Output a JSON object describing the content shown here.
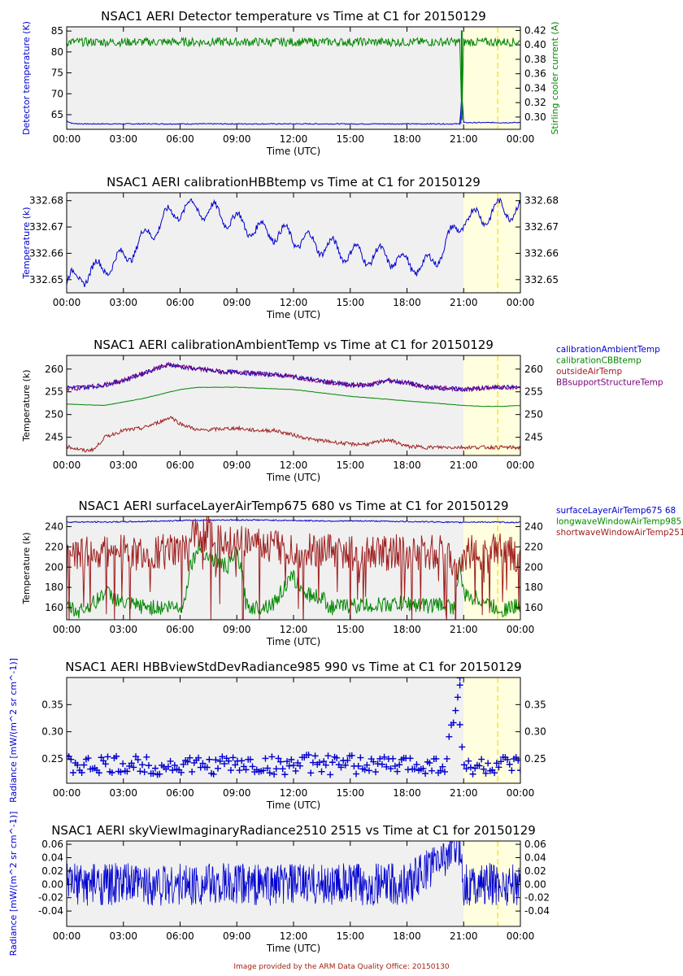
{
  "footer": "Image provided by the ARM Data Quality Office: 20150130",
  "colors": {
    "plot_bg": "#f0f0f0",
    "highlight": "#ffffe0",
    "highlight_line": "#ffd700",
    "blue": "#0000d0",
    "green": "#008800",
    "brown": "#a02020",
    "purple": "#7a007a"
  },
  "chart_data": [
    {
      "type": "line",
      "title": "NSAC1 AERI Detector temperature vs Time at C1 for 20150129",
      "xlabel": "Time (UTC)",
      "xticks": [
        "00:00",
        "03:00",
        "06:00",
        "09:00",
        "12:00",
        "15:00",
        "18:00",
        "21:00",
        "00:00"
      ],
      "ylabel": "Detector temperature (K)",
      "ylim": [
        61.5,
        86
      ],
      "yticks": [
        65,
        70,
        75,
        80,
        85
      ],
      "y2label": "Stirling cooler current (A)",
      "y2lim": [
        0.283,
        0.425
      ],
      "y2ticks": [
        "0.42",
        "0.40",
        "0.38",
        "0.36",
        "0.34",
        "0.32",
        "0.30"
      ],
      "series": [
        {
          "axis": "left",
          "color": "#0000d0",
          "x": [
            0,
            0.3,
            1,
            3,
            6,
            9,
            12,
            15,
            18,
            20.8,
            20.9,
            21,
            22,
            24
          ],
          "values": [
            63.5,
            62.9,
            62.8,
            62.8,
            62.8,
            62.8,
            62.8,
            62.8,
            62.8,
            62.8,
            70,
            63.1,
            63.1,
            63.1
          ]
        },
        {
          "axis": "right",
          "color": "#008800",
          "x": [
            0,
            3,
            6,
            9,
            12,
            15,
            18,
            20.8,
            20.9,
            21,
            24
          ],
          "values": [
            0.404,
            0.404,
            0.404,
            0.404,
            0.404,
            0.404,
            0.404,
            0.404,
            0.295,
            0.404,
            0.404
          ]
        }
      ]
    },
    {
      "type": "line",
      "title": "NSAC1 AERI calibrationHBBtemp vs Time at C1 for 20150129",
      "xlabel": "Time (UTC)",
      "xticks": [
        "00:00",
        "03:00",
        "06:00",
        "09:00",
        "12:00",
        "15:00",
        "18:00",
        "21:00",
        "00:00"
      ],
      "ylabel": "Temperature (k)",
      "ylim": [
        332.645,
        332.683
      ],
      "yticks": [
        "332.65",
        "332.66",
        "332.67",
        "332.68"
      ],
      "y2ticks": [
        "332.68",
        "332.67",
        "332.66",
        "332.65"
      ],
      "series": [
        {
          "color": "#0000d0",
          "x": [
            0,
            1,
            2,
            3,
            4,
            5,
            6,
            7,
            8,
            9,
            10,
            11,
            12,
            13,
            14,
            15,
            16,
            17,
            18,
            19,
            19.5,
            20.5,
            21,
            22,
            23,
            24
          ],
          "values": [
            332.649,
            332.652,
            332.655,
            332.658,
            332.665,
            332.672,
            332.677,
            332.677,
            332.675,
            332.672,
            332.669,
            332.668,
            332.666,
            332.664,
            332.662,
            332.66,
            332.659,
            332.659,
            332.656,
            332.655,
            332.658,
            332.668,
            332.673,
            332.674,
            332.677,
            332.676
          ]
        }
      ]
    },
    {
      "type": "line",
      "title": "NSAC1 AERI calibrationAmbientTemp vs Time at C1 for 20150129",
      "xlabel": "Time (UTC)",
      "xticks": [
        "00:00",
        "03:00",
        "06:00",
        "09:00",
        "12:00",
        "15:00",
        "18:00",
        "21:00",
        "00:00"
      ],
      "ylabel": "Temperature (k)",
      "ylim": [
        241,
        263
      ],
      "yticks": [
        245,
        250,
        255,
        260
      ],
      "y2ticks": [
        260,
        255,
        250,
        245
      ],
      "series": [
        {
          "name": "calibrationAmbientTemp",
          "color": "#0000d0",
          "x": [
            0,
            1,
            2,
            3,
            4,
            5,
            5.5,
            6,
            7,
            8,
            9,
            10,
            11,
            12,
            13,
            14,
            15,
            16,
            17,
            18,
            19,
            20,
            21,
            22,
            23,
            24
          ],
          "values": [
            256,
            256,
            256.5,
            257.5,
            259,
            260.5,
            261,
            260.5,
            260,
            259.5,
            259.3,
            259,
            258.8,
            258.3,
            257.7,
            257,
            256.5,
            256.5,
            257.5,
            257,
            256,
            255.8,
            255.5,
            255.8,
            256,
            256
          ]
        },
        {
          "name": "calibrationCBBtemp",
          "color": "#008800",
          "x": [
            0,
            2,
            4,
            6,
            7,
            9,
            12,
            15,
            18,
            21,
            22,
            23,
            24
          ],
          "values": [
            252.3,
            252,
            253.5,
            255.5,
            256,
            256,
            255.5,
            254,
            253,
            252,
            251.8,
            251.8,
            252
          ]
        },
        {
          "name": "outsideAirTemp",
          "color": "#a02020",
          "x": [
            0,
            1,
            1.5,
            2,
            3,
            4,
            5,
            5.5,
            6,
            7,
            8,
            9,
            10,
            11,
            12,
            13,
            14,
            15,
            16,
            17,
            18,
            19,
            20,
            21,
            22,
            23,
            24
          ],
          "values": [
            243,
            242,
            242.5,
            245,
            246.5,
            247,
            248.5,
            249.5,
            248,
            246.5,
            246.8,
            247,
            246.5,
            246.5,
            245.5,
            244.5,
            244,
            243.5,
            243.5,
            244.5,
            243,
            242.8,
            242.8,
            242.8,
            242.8,
            242.8,
            242.7
          ]
        },
        {
          "name": "BBsupportStructureTemp",
          "color": "#7a007a",
          "x": [
            0,
            1,
            2,
            3,
            4,
            5,
            5.5,
            6,
            7,
            8,
            9,
            10,
            11,
            12,
            13,
            14,
            15,
            16,
            17,
            18,
            19,
            20,
            21,
            22,
            23,
            24
          ],
          "values": [
            255.5,
            256,
            256.5,
            257.5,
            259,
            260.5,
            261,
            260.5,
            260,
            259.5,
            259.3,
            259,
            258.8,
            258.3,
            257.7,
            257,
            256.5,
            256.5,
            257.5,
            257,
            256,
            255.8,
            255.5,
            255.8,
            256,
            256
          ]
        }
      ],
      "legend": "right"
    },
    {
      "type": "line",
      "title": "NSAC1 AERI surfaceLayerAirTemp675 680 vs Time at C1 for 20150129",
      "xlabel": "Time (UTC)",
      "xticks": [
        "00:00",
        "03:00",
        "06:00",
        "09:00",
        "12:00",
        "15:00",
        "18:00",
        "21:00",
        "00:00"
      ],
      "ylabel": "Temperature (k)",
      "ylim": [
        148,
        250
      ],
      "yticks": [
        160,
        180,
        200,
        220,
        240
      ],
      "y2ticks": [
        240,
        220,
        200,
        180,
        160
      ],
      "series": [
        {
          "name": "surfaceLayerAirTemp675 68",
          "color": "#0000d0",
          "x": [
            0,
            2,
            4,
            6,
            8,
            10,
            12,
            14,
            16,
            18,
            20,
            20.8,
            21,
            22,
            24
          ],
          "values": [
            244.5,
            244.5,
            245,
            246,
            246.5,
            246.5,
            246,
            245.5,
            245.5,
            245,
            244.5,
            244,
            244.5,
            244.5,
            244
          ]
        },
        {
          "name": "longwaveWindowAirTemp985",
          "color": "#008800",
          "x": [
            0,
            0.5,
            1,
            1.5,
            2,
            2.5,
            3,
            4,
            5,
            6.2,
            6.5,
            7,
            7.5,
            8,
            8.5,
            9,
            9.3,
            9.5,
            10,
            10.5,
            11,
            11.5,
            12,
            12.5,
            13,
            13.5,
            14,
            15,
            16,
            17,
            18,
            19,
            20,
            20.5,
            20.8,
            21,
            21.5,
            22,
            22.5,
            23,
            23.5,
            24
          ],
          "values": [
            162,
            156,
            160,
            165,
            176,
            170,
            164,
            161,
            160,
            162,
            200,
            220,
            210,
            205,
            200,
            215,
            190,
            162,
            160,
            162,
            165,
            180,
            190,
            175,
            172,
            170,
            160,
            162,
            162,
            163,
            164,
            162,
            163,
            160,
            205,
            172,
            170,
            168,
            161,
            158,
            160,
            162
          ]
        },
        {
          "name": "shortwaveWindowAirTemp251",
          "color": "#a02020",
          "x": [
            0,
            1,
            2,
            3,
            4,
            5,
            6,
            6.5,
            7,
            7.5,
            8,
            9,
            10,
            11,
            12,
            13,
            14,
            15,
            16,
            17,
            18,
            19,
            20,
            20.8,
            21,
            22,
            23,
            24
          ],
          "values": [
            215,
            212,
            215,
            214,
            213,
            215,
            214,
            225,
            235,
            232,
            228,
            224,
            222,
            220,
            218,
            215,
            215,
            214,
            215,
            214,
            215,
            214,
            215,
            200,
            214,
            215,
            216,
            213
          ]
        }
      ],
      "legend": "right"
    },
    {
      "type": "scatter",
      "title": "NSAC1 AERI HBBviewStdDevRadiance985 990 vs Time at C1 for 20150129",
      "xlabel": "Time (UTC)",
      "xticks": [
        "00:00",
        "03:00",
        "06:00",
        "09:00",
        "12:00",
        "15:00",
        "18:00",
        "21:00",
        "00:00"
      ],
      "ylabel": "Radiance [mW/(m^2 sr cm^-1)]",
      "ylim": [
        0.205,
        0.4
      ],
      "yticks": [
        "0.25",
        "0.30",
        "0.35"
      ],
      "y2ticks": [
        "0.35",
        "0.30",
        "0.25"
      ],
      "series": [
        {
          "color": "#0000d0",
          "x": [
            0,
            1,
            2,
            3,
            4,
            5,
            6,
            7,
            8,
            9,
            10,
            11,
            12,
            13,
            14,
            15,
            16,
            17,
            18,
            19,
            20,
            20.8,
            20.8,
            21,
            22,
            23,
            24
          ],
          "values": [
            0.24,
            0.235,
            0.238,
            0.237,
            0.24,
            0.236,
            0.238,
            0.237,
            0.239,
            0.24,
            0.238,
            0.237,
            0.24,
            0.241,
            0.238,
            0.239,
            0.24,
            0.238,
            0.239,
            0.24,
            0.238,
            0.386,
            0.313,
            0.238,
            0.235,
            0.237,
            0.236
          ]
        }
      ]
    },
    {
      "type": "line",
      "title": "NSAC1 AERI skyViewImaginaryRadiance2510 2515 vs Time at C1 for 20150129",
      "xlabel": "Time (UTC)",
      "xticks": [
        "00:00",
        "03:00",
        "06:00",
        "09:00",
        "12:00",
        "15:00",
        "18:00",
        "21:00",
        "00:00"
      ],
      "ylabel": "Radiance [mW/(m^2 sr cm^-1)]",
      "ylim": [
        -0.063,
        0.065
      ],
      "yticks": [
        "0.06",
        "0.04",
        "0.02",
        "0.00",
        "-0.02",
        "-0.04"
      ],
      "y2ticks": [
        "0.06",
        "0.04",
        "0.02",
        "0.00",
        "-0.02",
        "-0.04"
      ],
      "series": [
        {
          "color": "#0000d0",
          "x": [
            0,
            3,
            6,
            9,
            12,
            15,
            18,
            20.8,
            21,
            24
          ],
          "values": [
            0,
            0,
            0,
            0,
            0,
            0,
            0,
            0.06,
            0,
            0
          ]
        }
      ]
    }
  ]
}
